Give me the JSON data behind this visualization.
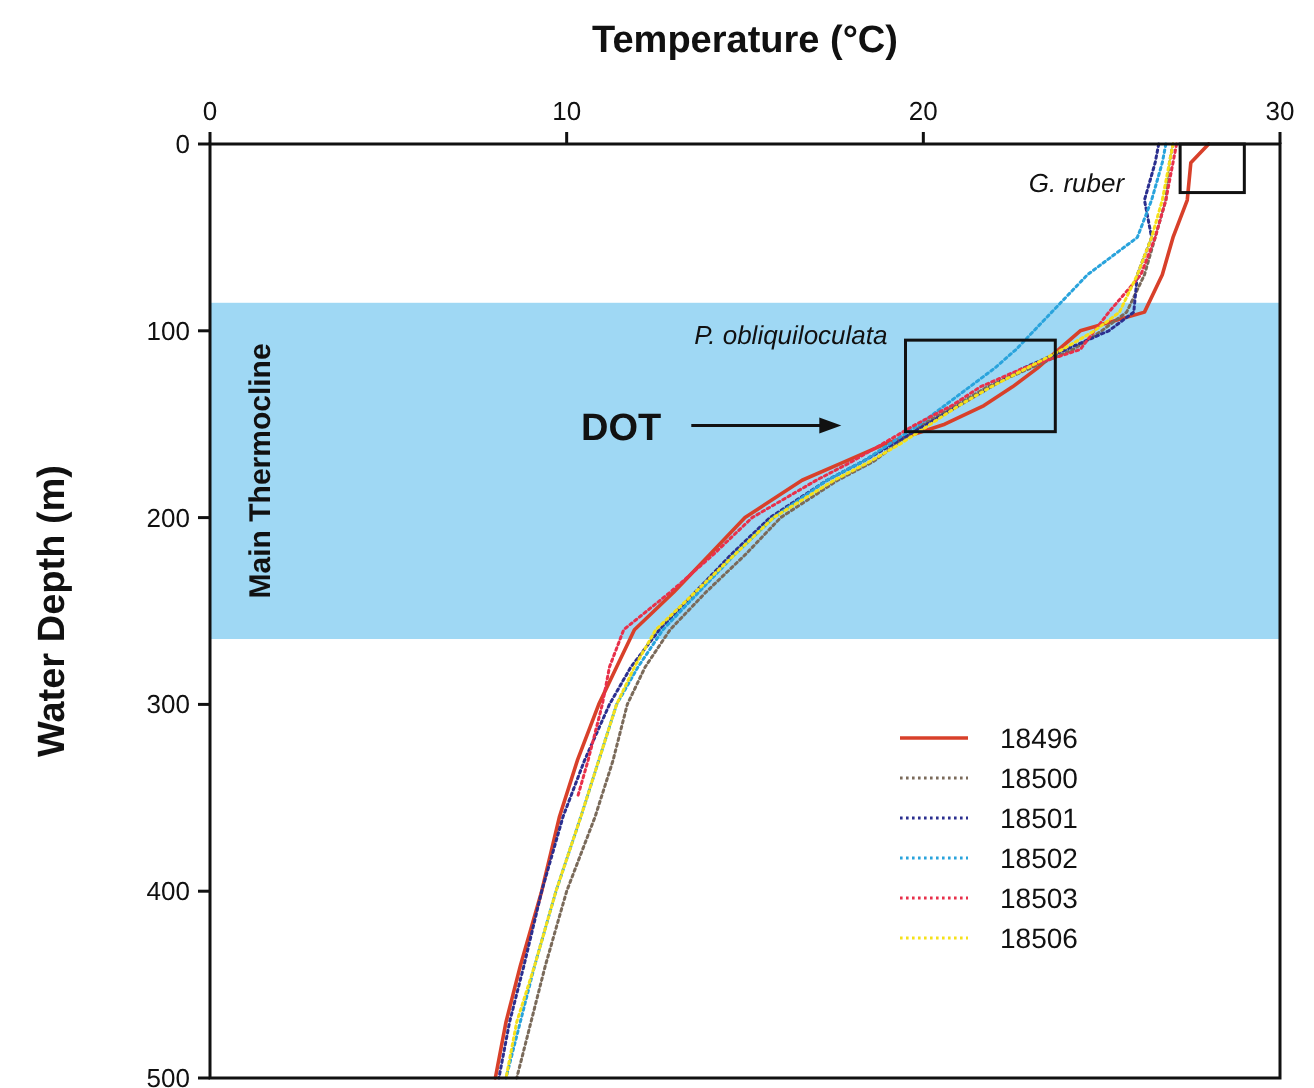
{
  "chart_data": {
    "type": "line",
    "xlabel": "Temperature (°C)",
    "ylabel": "Water Depth (m)",
    "xlim": [
      0,
      30
    ],
    "xticks": [
      0,
      10,
      20,
      30
    ],
    "ylim": [
      500,
      0
    ],
    "yticks": [
      0,
      100,
      200,
      300,
      400,
      500
    ],
    "grid": false,
    "legend": "bottom right",
    "marker": "none",
    "bands": [
      {
        "axis": "y",
        "from": 85,
        "to": 265,
        "label": "Main Thermocline",
        "color": "#9fd8f4"
      }
    ],
    "annotations": [
      "G. ruber",
      "P. obliquiloculata",
      "DOT"
    ],
    "series": [
      {
        "name": "18496",
        "color": "#d8402a",
        "line_style": "solid",
        "x": [
          28.0,
          27.5,
          27.4,
          27.0,
          26.7,
          26.2,
          24.4,
          23.8,
          23.2,
          22.5,
          21.7,
          20.6,
          19.0,
          17.8,
          16.6,
          15.0,
          14.0,
          13.0,
          11.9,
          11.4,
          10.9,
          10.3,
          9.8,
          9.3,
          8.7,
          8.3,
          8.0
        ],
        "values": [
          0,
          10,
          30,
          50,
          70,
          90,
          100,
          110,
          120,
          130,
          140,
          150,
          160,
          170,
          180,
          200,
          220,
          240,
          260,
          280,
          300,
          330,
          360,
          400,
          440,
          470,
          500
        ]
      },
      {
        "name": "18500",
        "color": "#7a6a5a",
        "line_style": "dotted",
        "x": [
          27.0,
          26.9,
          26.8,
          26.5,
          26.2,
          25.7,
          25.0,
          24.2,
          23.0,
          21.8,
          20.9,
          20.0,
          19.3,
          18.6,
          17.6,
          16.0,
          15.0,
          13.9,
          12.9,
          12.2,
          11.7,
          11.3,
          10.8,
          10.0,
          9.4,
          9.0,
          8.6
        ],
        "values": [
          0,
          10,
          30,
          50,
          70,
          90,
          100,
          110,
          120,
          130,
          140,
          150,
          160,
          170,
          180,
          200,
          220,
          240,
          260,
          280,
          300,
          330,
          360,
          400,
          440,
          470,
          500
        ]
      },
      {
        "name": "18501",
        "color": "#2b2f8f",
        "line_style": "dotted",
        "x": [
          26.6,
          26.5,
          26.2,
          26.4,
          26.0,
          25.9,
          25.2,
          24.0,
          22.8,
          21.9,
          21.0,
          20.1,
          19.2,
          18.3,
          17.3,
          15.7,
          14.6,
          13.6,
          12.6,
          11.8,
          11.2,
          10.5,
          9.9,
          9.3,
          8.8,
          8.4,
          8.1
        ],
        "values": [
          0,
          10,
          30,
          50,
          70,
          90,
          100,
          110,
          120,
          130,
          140,
          150,
          160,
          170,
          180,
          200,
          220,
          240,
          260,
          280,
          300,
          330,
          360,
          400,
          440,
          470,
          500
        ]
      },
      {
        "name": "18502",
        "color": "#29a3dc",
        "line_style": "dotted",
        "x": [
          26.8,
          26.7,
          26.4,
          26.0,
          24.6,
          23.6,
          23.1,
          22.6,
          22.0,
          21.3,
          20.6,
          19.9,
          19.1,
          18.3,
          17.3,
          15.8,
          14.7,
          13.7,
          12.7,
          12.0,
          11.4,
          10.9,
          10.4,
          9.7,
          9.1,
          8.7,
          8.3
        ],
        "values": [
          0,
          10,
          30,
          50,
          70,
          90,
          100,
          110,
          120,
          130,
          140,
          150,
          160,
          170,
          180,
          200,
          220,
          240,
          260,
          280,
          300,
          330,
          360,
          400,
          440,
          470,
          500
        ]
      },
      {
        "name": "18503",
        "color": "#e8304a",
        "line_style": "dotted",
        "x": [
          27.1,
          27.0,
          26.8,
          26.5,
          26.1,
          25.2,
          24.8,
          24.4,
          22.8,
          21.6,
          20.8,
          19.8,
          18.9,
          18.0,
          17.0,
          15.2,
          14.1,
          12.9,
          11.6,
          11.2,
          11.0,
          10.6,
          10.3
        ],
        "values": [
          0,
          10,
          30,
          50,
          70,
          90,
          100,
          110,
          120,
          130,
          140,
          150,
          160,
          170,
          180,
          200,
          220,
          240,
          260,
          280,
          300,
          330,
          350
        ]
      },
      {
        "name": "18506",
        "color": "#f5e11a",
        "line_style": "dotted",
        "x": [
          27.0,
          26.9,
          26.7,
          26.4,
          26.0,
          25.5,
          24.8,
          23.9,
          22.9,
          21.9,
          21.0,
          20.2,
          19.4,
          18.5,
          17.5,
          15.8,
          14.7,
          13.6,
          12.5,
          11.9,
          11.4,
          10.9,
          10.4,
          9.7,
          9.1,
          8.6,
          8.3
        ],
        "values": [
          0,
          10,
          30,
          50,
          70,
          90,
          100,
          110,
          120,
          130,
          140,
          150,
          160,
          170,
          180,
          200,
          220,
          240,
          260,
          280,
          300,
          330,
          360,
          400,
          440,
          470,
          500
        ]
      }
    ]
  }
}
